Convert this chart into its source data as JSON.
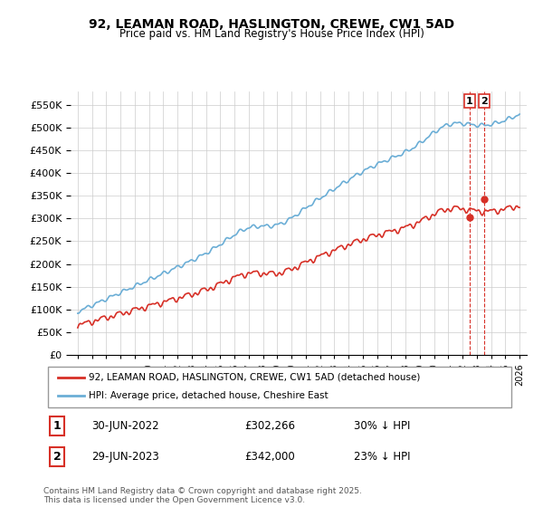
{
  "title": "92, LEAMAN ROAD, HASLINGTON, CREWE, CW1 5AD",
  "subtitle": "Price paid vs. HM Land Registry's House Price Index (HPI)",
  "legend_line1": "92, LEAMAN ROAD, HASLINGTON, CREWE, CW1 5AD (detached house)",
  "legend_line2": "HPI: Average price, detached house, Cheshire East",
  "footer": "Contains HM Land Registry data © Crown copyright and database right 2025.\nThis data is licensed under the Open Government Licence v3.0.",
  "annotation1_date": "30-JUN-2022",
  "annotation1_price": "£302,266",
  "annotation1_hpi": "30% ↓ HPI",
  "annotation2_date": "29-JUN-2023",
  "annotation2_price": "£342,000",
  "annotation2_hpi": "23% ↓ HPI",
  "ylim": [
    0,
    580000
  ],
  "yticks": [
    0,
    50000,
    100000,
    150000,
    200000,
    250000,
    300000,
    350000,
    400000,
    450000,
    500000,
    550000
  ],
  "hpi_color": "#6baed6",
  "price_color": "#d73027",
  "vline_color": "#d73027",
  "background_color": "#ffffff",
  "grid_color": "#cccccc"
}
